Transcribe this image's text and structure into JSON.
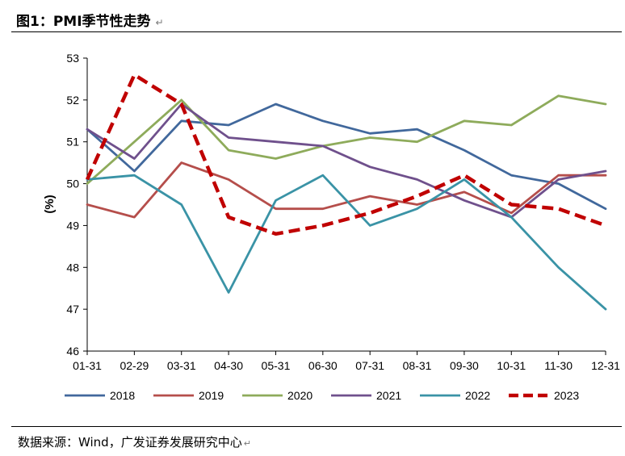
{
  "figure": {
    "title": "图1：PMI季节性走势",
    "para_mark": "↵",
    "source": "数据来源：Wind，广发证券发展研究中心"
  },
  "chart_data": {
    "type": "line",
    "ylabel": "(%)",
    "xlabel": "",
    "ylim": [
      46,
      53
    ],
    "yticks": [
      46,
      47,
      48,
      49,
      50,
      51,
      52,
      53
    ],
    "categories": [
      "01-31",
      "02-29",
      "03-31",
      "04-30",
      "05-31",
      "06-30",
      "07-31",
      "08-31",
      "09-30",
      "10-31",
      "11-30",
      "12-31"
    ],
    "legend_position": "bottom",
    "grid": false,
    "series": [
      {
        "name": "2018",
        "color": "#41689c",
        "dash": false,
        "values": [
          51.3,
          50.3,
          51.5,
          51.4,
          51.9,
          51.5,
          51.2,
          51.3,
          50.8,
          50.2,
          50.0,
          49.4
        ]
      },
      {
        "name": "2019",
        "color": "#b54e4b",
        "dash": false,
        "values": [
          49.5,
          49.2,
          50.5,
          50.1,
          49.4,
          49.4,
          49.7,
          49.5,
          49.8,
          49.3,
          50.2,
          50.2
        ]
      },
      {
        "name": "2020",
        "color": "#8eab5b",
        "dash": false,
        "values": [
          50.0,
          51.0,
          52.0,
          50.8,
          50.6,
          50.9,
          51.1,
          51.0,
          51.5,
          51.4,
          52.1,
          51.9
        ]
      },
      {
        "name": "2021",
        "color": "#6f508c",
        "dash": false,
        "values": [
          51.3,
          50.6,
          51.9,
          51.1,
          51.0,
          50.9,
          50.4,
          50.1,
          49.6,
          49.2,
          50.1,
          50.3
        ]
      },
      {
        "name": "2022",
        "color": "#3a93a6",
        "dash": false,
        "values": [
          50.1,
          50.2,
          49.5,
          47.4,
          49.6,
          50.2,
          49.0,
          49.4,
          50.1,
          49.2,
          48.0,
          47.0
        ]
      },
      {
        "name": "2023",
        "color": "#c00000",
        "dash": true,
        "values": [
          50.1,
          52.6,
          51.9,
          49.2,
          48.8,
          49.0,
          49.3,
          49.7,
          50.2,
          49.5,
          49.4,
          49.0
        ]
      }
    ]
  }
}
